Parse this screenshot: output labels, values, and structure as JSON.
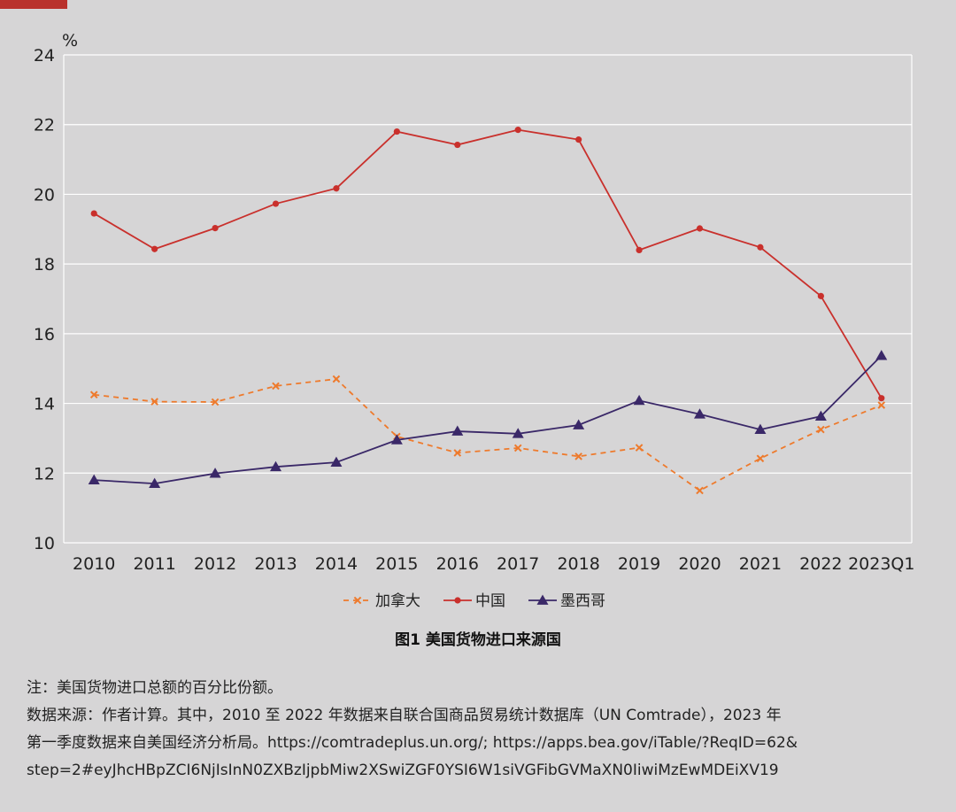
{
  "chart_data": {
    "type": "line",
    "unit_label": "%",
    "categories": [
      "2010",
      "2011",
      "2012",
      "2013",
      "2014",
      "2015",
      "2016",
      "2017",
      "2018",
      "2019",
      "2020",
      "2021",
      "2022",
      "2023Q1"
    ],
    "ylim": [
      10,
      24
    ],
    "yticks": [
      10,
      12,
      14,
      16,
      18,
      20,
      22,
      24
    ],
    "grid": true,
    "legend_position": "bottom",
    "series": [
      {
        "name": "加拿大",
        "color": "#ee7a2c",
        "style": "dashed",
        "marker": "x",
        "values": [
          14.25,
          14.05,
          14.04,
          14.5,
          14.7,
          13.05,
          12.58,
          12.72,
          12.48,
          12.73,
          11.5,
          12.42,
          13.25,
          13.95
        ]
      },
      {
        "name": "中国",
        "color": "#c9302c",
        "style": "solid",
        "marker": "circle",
        "values": [
          19.45,
          18.43,
          19.03,
          19.73,
          20.17,
          21.8,
          21.42,
          21.85,
          21.57,
          18.4,
          19.02,
          18.48,
          17.08,
          14.15
        ]
      },
      {
        "name": "墨西哥",
        "color": "#3a2868",
        "style": "solid",
        "marker": "triangle",
        "values": [
          11.8,
          11.7,
          11.99,
          12.18,
          12.31,
          12.95,
          13.2,
          13.13,
          13.38,
          14.08,
          13.69,
          13.25,
          13.63,
          15.37
        ]
      }
    ]
  },
  "caption": "图1   美国货物进口来源国",
  "notes": [
    "注：美国货物进口总额的百分比份额。",
    "数据来源：作者计算。其中，2010 至 2022 年数据来自联合国商品贸易统计数据库（UN Comtrade），2023 年",
    "第一季度数据来自美国经济分析局。https://comtradeplus.un.org/; https://apps.bea.gov/iTable/?ReqID=62&",
    "step=2#eyJhcHBpZCI6NjIsInN0ZXBzIjpbMiw2XSwiZGF0YSI6W1siVGFibGVMaXN0IiwiMzEwMDEiXV19"
  ],
  "colors": {
    "background": "#d6d5d6",
    "grid": "#ffffff",
    "accent": "#b9312c"
  }
}
